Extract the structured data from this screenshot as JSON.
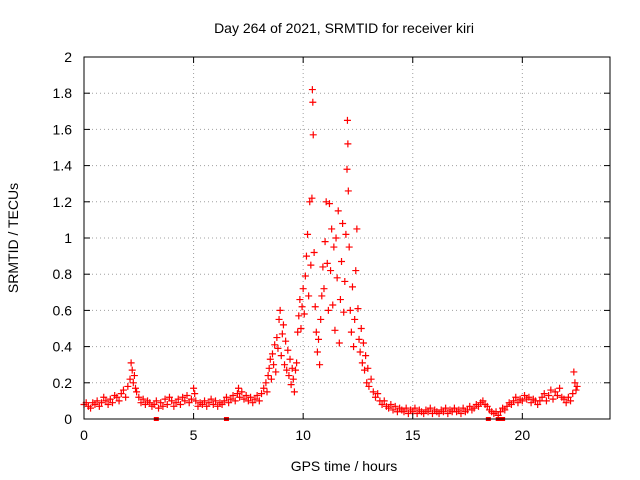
{
  "chart_data": {
    "type": "scatter",
    "title": "Day 264 of 2021, SRMTID for receiver kiri",
    "xlabel": "GPS time / hours",
    "ylabel": "SRMTID / TECUs",
    "xlim": [
      0,
      24
    ],
    "ylim": [
      0,
      2
    ],
    "xticks": [
      0,
      5,
      10,
      15,
      20
    ],
    "xtick_labels": [
      "0",
      "5",
      "10",
      "15",
      "20"
    ],
    "yticks": [
      0,
      0.2,
      0.4,
      0.6,
      0.8,
      1,
      1.2,
      1.4,
      1.6,
      1.8,
      2
    ],
    "ytick_labels": [
      "0",
      "0.2",
      "0.4",
      "0.6",
      "0.8",
      "1",
      "1.2",
      "1.4",
      "1.6",
      "1.8",
      "2"
    ],
    "grid": true,
    "marker": "+",
    "color": "#ff0000",
    "series": [
      {
        "name": "SRMTID",
        "points": [
          [
            0.0,
            0.08
          ],
          [
            0.1,
            0.09
          ],
          [
            0.2,
            0.07
          ],
          [
            0.3,
            0.06
          ],
          [
            0.4,
            0.09
          ],
          [
            0.5,
            0.08
          ],
          [
            0.6,
            0.1
          ],
          [
            0.7,
            0.07
          ],
          [
            0.8,
            0.09
          ],
          [
            0.9,
            0.12
          ],
          [
            1.0,
            0.1
          ],
          [
            1.1,
            0.08
          ],
          [
            1.2,
            0.11
          ],
          [
            1.3,
            0.09
          ],
          [
            1.4,
            0.13
          ],
          [
            1.5,
            0.12
          ],
          [
            1.6,
            0.1
          ],
          [
            1.7,
            0.14
          ],
          [
            1.8,
            0.16
          ],
          [
            1.9,
            0.12
          ],
          [
            2.0,
            0.18
          ],
          [
            2.1,
            0.22
          ],
          [
            2.15,
            0.31
          ],
          [
            2.2,
            0.27
          ],
          [
            2.25,
            0.2
          ],
          [
            2.3,
            0.24
          ],
          [
            2.35,
            0.17
          ],
          [
            2.4,
            0.15
          ],
          [
            2.5,
            0.12
          ],
          [
            2.6,
            0.09
          ],
          [
            2.7,
            0.11
          ],
          [
            2.8,
            0.08
          ],
          [
            2.9,
            0.1
          ],
          [
            3.0,
            0.09
          ],
          [
            3.1,
            0.07
          ],
          [
            3.2,
            0.08
          ],
          [
            3.3,
            0.1
          ],
          [
            3.4,
            0.06
          ],
          [
            3.5,
            0.09
          ],
          [
            3.6,
            0.07
          ],
          [
            3.7,
            0.11
          ],
          [
            3.8,
            0.08
          ],
          [
            3.9,
            0.12
          ],
          [
            4.0,
            0.1
          ],
          [
            4.1,
            0.07
          ],
          [
            4.2,
            0.09
          ],
          [
            4.3,
            0.11
          ],
          [
            4.4,
            0.08
          ],
          [
            4.5,
            0.12
          ],
          [
            4.6,
            0.1
          ],
          [
            4.7,
            0.13
          ],
          [
            4.8,
            0.09
          ],
          [
            4.9,
            0.11
          ],
          [
            5.0,
            0.17
          ],
          [
            5.05,
            0.14
          ],
          [
            5.1,
            0.1
          ],
          [
            5.2,
            0.07
          ],
          [
            5.3,
            0.09
          ],
          [
            5.4,
            0.08
          ],
          [
            5.5,
            0.1
          ],
          [
            5.6,
            0.07
          ],
          [
            5.7,
            0.09
          ],
          [
            5.8,
            0.11
          ],
          [
            5.9,
            0.08
          ],
          [
            6.0,
            0.1
          ],
          [
            6.1,
            0.07
          ],
          [
            6.2,
            0.09
          ],
          [
            6.3,
            0.08
          ],
          [
            6.4,
            0.1
          ],
          [
            6.5,
            0.12
          ],
          [
            6.6,
            0.09
          ],
          [
            6.7,
            0.11
          ],
          [
            6.8,
            0.13
          ],
          [
            6.9,
            0.1
          ],
          [
            7.0,
            0.14
          ],
          [
            7.05,
            0.17
          ],
          [
            7.1,
            0.12
          ],
          [
            7.2,
            0.15
          ],
          [
            7.3,
            0.11
          ],
          [
            7.4,
            0.13
          ],
          [
            7.5,
            0.1
          ],
          [
            7.6,
            0.12
          ],
          [
            7.7,
            0.09
          ],
          [
            7.8,
            0.11
          ],
          [
            7.9,
            0.13
          ],
          [
            8.0,
            0.1
          ],
          [
            8.1,
            0.14
          ],
          [
            8.2,
            0.17
          ],
          [
            8.3,
            0.2
          ],
          [
            8.35,
            0.15
          ],
          [
            8.4,
            0.24
          ],
          [
            8.45,
            0.28
          ],
          [
            8.5,
            0.33
          ],
          [
            8.55,
            0.22
          ],
          [
            8.6,
            0.36
          ],
          [
            8.65,
            0.3
          ],
          [
            8.7,
            0.41
          ],
          [
            8.75,
            0.26
          ],
          [
            8.8,
            0.45
          ],
          [
            8.85,
            0.39
          ],
          [
            8.9,
            0.55
          ],
          [
            8.95,
            0.6
          ],
          [
            9.0,
            0.35
          ],
          [
            9.05,
            0.47
          ],
          [
            9.1,
            0.52
          ],
          [
            9.15,
            0.3
          ],
          [
            9.2,
            0.43
          ],
          [
            9.25,
            0.27
          ],
          [
            9.3,
            0.38
          ],
          [
            9.35,
            0.24
          ],
          [
            9.4,
            0.33
          ],
          [
            9.45,
            0.19
          ],
          [
            9.5,
            0.28
          ],
          [
            9.55,
            0.22
          ],
          [
            9.6,
            0.15
          ],
          [
            9.65,
            0.27
          ],
          [
            9.7,
            0.31
          ],
          [
            9.75,
            0.48
          ],
          [
            9.8,
            0.57
          ],
          [
            9.85,
            0.66
          ],
          [
            9.9,
            0.5
          ],
          [
            9.95,
            0.62
          ],
          [
            10.0,
            0.72
          ],
          [
            10.05,
            0.58
          ],
          [
            10.1,
            0.79
          ],
          [
            10.15,
            0.9
          ],
          [
            10.2,
            1.02
          ],
          [
            10.25,
            0.68
          ],
          [
            10.3,
            1.2
          ],
          [
            10.35,
            0.85
          ],
          [
            10.4,
            1.22
          ],
          [
            10.42,
            1.82
          ],
          [
            10.44,
            1.75
          ],
          [
            10.46,
            1.57
          ],
          [
            10.5,
            0.92
          ],
          [
            10.55,
            0.62
          ],
          [
            10.6,
            0.48
          ],
          [
            10.65,
            0.37
          ],
          [
            10.7,
            0.44
          ],
          [
            10.75,
            0.3
          ],
          [
            10.8,
            0.55
          ],
          [
            10.85,
            0.68
          ],
          [
            10.9,
            0.84
          ],
          [
            10.95,
            0.72
          ],
          [
            11.0,
            0.98
          ],
          [
            11.05,
            1.2
          ],
          [
            11.1,
            0.86
          ],
          [
            11.15,
            0.6
          ],
          [
            11.2,
            1.19
          ],
          [
            11.25,
            0.82
          ],
          [
            11.3,
            1.05
          ],
          [
            11.35,
            0.63
          ],
          [
            11.4,
            0.95
          ],
          [
            11.45,
            0.49
          ],
          [
            11.5,
            1.0
          ],
          [
            11.55,
            0.78
          ],
          [
            11.6,
            1.15
          ],
          [
            11.65,
            0.42
          ],
          [
            11.7,
            0.66
          ],
          [
            11.75,
            0.87
          ],
          [
            11.8,
            1.08
          ],
          [
            11.85,
            0.59
          ],
          [
            11.9,
            0.76
          ],
          [
            11.95,
            1.02
          ],
          [
            12.0,
            1.38
          ],
          [
            12.02,
            1.65
          ],
          [
            12.04,
            1.52
          ],
          [
            12.06,
            1.26
          ],
          [
            12.1,
            0.95
          ],
          [
            12.15,
            0.6
          ],
          [
            12.2,
            0.48
          ],
          [
            12.25,
            0.73
          ],
          [
            12.3,
            0.4
          ],
          [
            12.35,
            0.55
          ],
          [
            12.4,
            0.82
          ],
          [
            12.45,
            1.05
          ],
          [
            12.5,
            0.61
          ],
          [
            12.55,
            0.44
          ],
          [
            12.6,
            0.37
          ],
          [
            12.65,
            0.5
          ],
          [
            12.7,
            0.31
          ],
          [
            12.75,
            0.42
          ],
          [
            12.8,
            0.27
          ],
          [
            12.85,
            0.35
          ],
          [
            12.9,
            0.2
          ],
          [
            12.95,
            0.28
          ],
          [
            13.0,
            0.18
          ],
          [
            13.1,
            0.22
          ],
          [
            13.2,
            0.15
          ],
          [
            13.3,
            0.12
          ],
          [
            13.4,
            0.14
          ],
          [
            13.5,
            0.1
          ],
          [
            13.6,
            0.08
          ],
          [
            13.7,
            0.1
          ],
          [
            13.8,
            0.07
          ],
          [
            13.9,
            0.06
          ],
          [
            14.0,
            0.08
          ],
          [
            14.1,
            0.05
          ],
          [
            14.2,
            0.07
          ],
          [
            14.3,
            0.04
          ],
          [
            14.4,
            0.06
          ],
          [
            14.5,
            0.05
          ],
          [
            14.6,
            0.04
          ],
          [
            14.7,
            0.06
          ],
          [
            14.8,
            0.03
          ],
          [
            14.9,
            0.05
          ],
          [
            15.0,
            0.04
          ],
          [
            15.1,
            0.06
          ],
          [
            15.2,
            0.03
          ],
          [
            15.3,
            0.05
          ],
          [
            15.4,
            0.04
          ],
          [
            15.5,
            0.03
          ],
          [
            15.6,
            0.05
          ],
          [
            15.7,
            0.04
          ],
          [
            15.8,
            0.06
          ],
          [
            15.9,
            0.03
          ],
          [
            16.0,
            0.05
          ],
          [
            16.1,
            0.04
          ],
          [
            16.2,
            0.03
          ],
          [
            16.3,
            0.05
          ],
          [
            16.4,
            0.04
          ],
          [
            16.5,
            0.06
          ],
          [
            16.6,
            0.03
          ],
          [
            16.7,
            0.05
          ],
          [
            16.8,
            0.04
          ],
          [
            16.9,
            0.06
          ],
          [
            17.0,
            0.04
          ],
          [
            17.1,
            0.05
          ],
          [
            17.2,
            0.03
          ],
          [
            17.3,
            0.06
          ],
          [
            17.4,
            0.04
          ],
          [
            17.5,
            0.05
          ],
          [
            17.6,
            0.07
          ],
          [
            17.7,
            0.05
          ],
          [
            17.8,
            0.06
          ],
          [
            17.9,
            0.08
          ],
          [
            18.0,
            0.07
          ],
          [
            18.1,
            0.09
          ],
          [
            18.2,
            0.1
          ],
          [
            18.3,
            0.08
          ],
          [
            18.4,
            0.07
          ],
          [
            18.5,
            0.05
          ],
          [
            18.6,
            0.04
          ],
          [
            18.7,
            0.03
          ],
          [
            18.8,
            0.04
          ],
          [
            18.9,
            0.02
          ],
          [
            19.0,
            0.04
          ],
          [
            19.1,
            0.06
          ],
          [
            19.2,
            0.05
          ],
          [
            19.3,
            0.07
          ],
          [
            19.4,
            0.09
          ],
          [
            19.5,
            0.08
          ],
          [
            19.6,
            0.1
          ],
          [
            19.7,
            0.12
          ],
          [
            19.8,
            0.09
          ],
          [
            19.9,
            0.11
          ],
          [
            20.0,
            0.1
          ],
          [
            20.1,
            0.13
          ],
          [
            20.2,
            0.11
          ],
          [
            20.3,
            0.12
          ],
          [
            20.4,
            0.09
          ],
          [
            20.5,
            0.11
          ],
          [
            20.6,
            0.1
          ],
          [
            20.7,
            0.08
          ],
          [
            20.8,
            0.1
          ],
          [
            20.9,
            0.12
          ],
          [
            21.0,
            0.14
          ],
          [
            21.1,
            0.1
          ],
          [
            21.2,
            0.13
          ],
          [
            21.3,
            0.16
          ],
          [
            21.4,
            0.11
          ],
          [
            21.5,
            0.15
          ],
          [
            21.6,
            0.13
          ],
          [
            21.7,
            0.17
          ],
          [
            21.8,
            0.12
          ],
          [
            21.9,
            0.11
          ],
          [
            22.0,
            0.09
          ],
          [
            22.1,
            0.12
          ],
          [
            22.2,
            0.1
          ],
          [
            22.3,
            0.14
          ],
          [
            22.35,
            0.26
          ],
          [
            22.4,
            0.2
          ],
          [
            22.45,
            0.16
          ],
          [
            22.5,
            0.18
          ]
        ]
      }
    ],
    "markers_on_axis": [
      3.3,
      6.5,
      18.45,
      18.9,
      19.1
    ]
  }
}
